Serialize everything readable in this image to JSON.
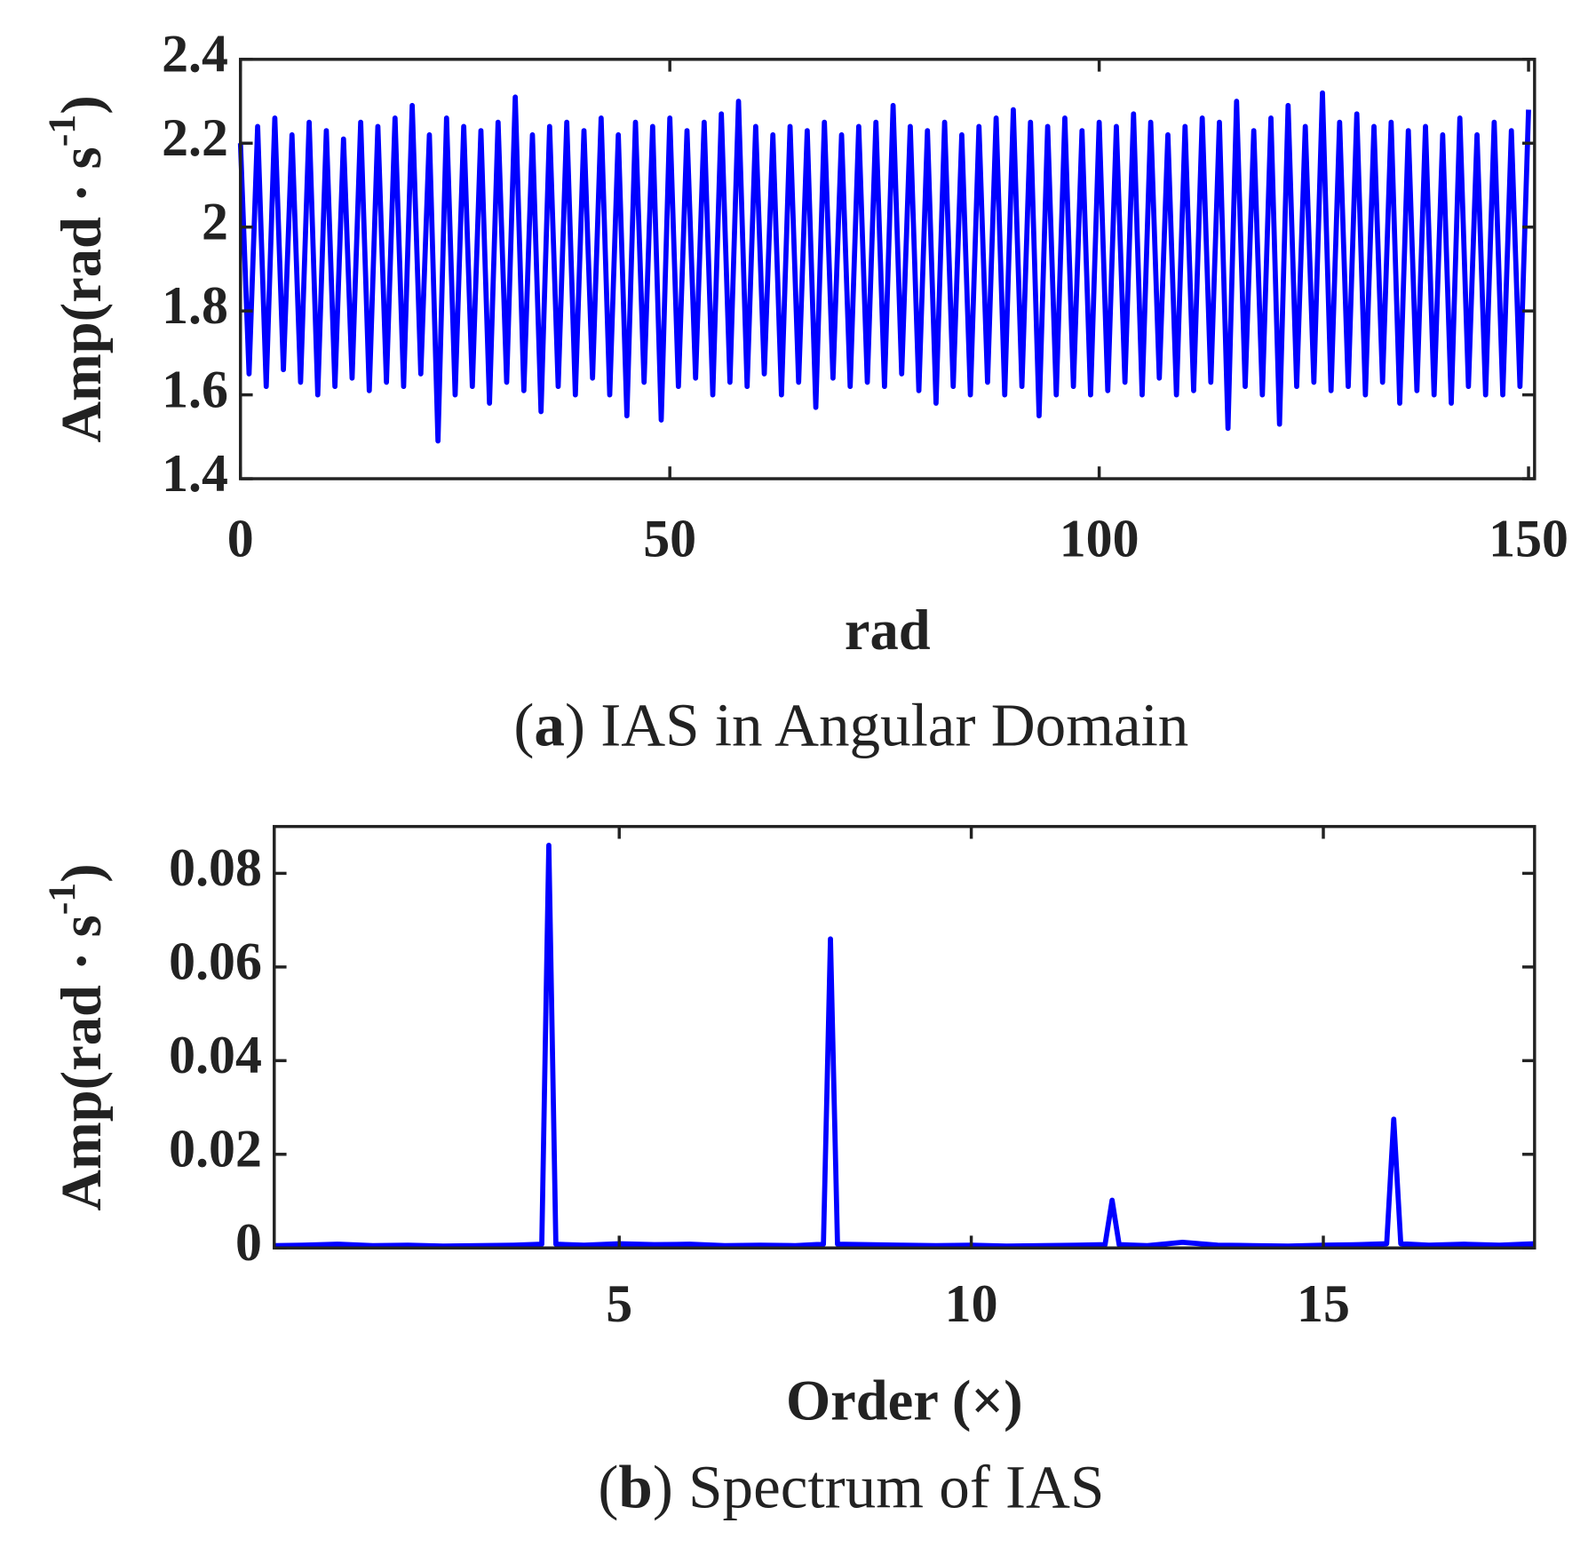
{
  "chart_data": [
    {
      "type": "line",
      "color": "#0000ff",
      "ylabel": [
        "Amp(rad · s",
        "-1",
        ")"
      ],
      "xlabel": "rad",
      "caption": [
        "(",
        "a",
        ") IAS in Angular Domain"
      ],
      "xlim": [
        0,
        150.7
      ],
      "xticks": [
        0,
        50,
        100,
        150
      ],
      "ylim": [
        1.4,
        2.4
      ],
      "yticks": [
        1.4,
        1.6,
        1.8,
        2,
        2.2,
        2.4
      ],
      "x": [
        0,
        1,
        2,
        3,
        4,
        5,
        6,
        7,
        8,
        9,
        10,
        11,
        12,
        13,
        14,
        15,
        16,
        17,
        18,
        19,
        20,
        21,
        22,
        23,
        24,
        25,
        26,
        27,
        28,
        29,
        30,
        31,
        32,
        33,
        34,
        35,
        36,
        37,
        38,
        39,
        40,
        41,
        42,
        43,
        44,
        45,
        46,
        47,
        48,
        49,
        50,
        51,
        52,
        53,
        54,
        55,
        56,
        57,
        58,
        59,
        60,
        61,
        62,
        63,
        64,
        65,
        66,
        67,
        68,
        69,
        70,
        71,
        72,
        73,
        74,
        75,
        76,
        77,
        78,
        79,
        80,
        81,
        82,
        83,
        84,
        85,
        86,
        87,
        88,
        89,
        90,
        91,
        92,
        93,
        94,
        95,
        96,
        97,
        98,
        99,
        100,
        101,
        102,
        103,
        104,
        105,
        106,
        107,
        108,
        109,
        110,
        111,
        112,
        113,
        114,
        115,
        116,
        117,
        118,
        119,
        120,
        121,
        122,
        123,
        124,
        125,
        126,
        127,
        128,
        129,
        130,
        131,
        132,
        133,
        134,
        135,
        136,
        137,
        138,
        139,
        140,
        141,
        142,
        143,
        144,
        145,
        146,
        147,
        148,
        149,
        150
      ],
      "values": [
        2.2,
        1.65,
        2.24,
        1.62,
        2.26,
        1.66,
        2.22,
        1.63,
        2.25,
        1.6,
        2.23,
        1.62,
        2.21,
        1.64,
        2.25,
        1.61,
        2.24,
        1.63,
        2.26,
        1.62,
        2.29,
        1.65,
        2.22,
        1.49,
        2.26,
        1.6,
        2.24,
        1.62,
        2.23,
        1.58,
        2.25,
        1.63,
        2.31,
        1.61,
        2.22,
        1.56,
        2.24,
        1.62,
        2.25,
        1.6,
        2.23,
        1.64,
        2.26,
        1.6,
        2.22,
        1.55,
        2.25,
        1.63,
        2.24,
        1.54,
        2.26,
        1.62,
        2.23,
        1.64,
        2.25,
        1.6,
        2.27,
        1.63,
        2.3,
        1.62,
        2.24,
        1.65,
        2.22,
        1.6,
        2.24,
        1.63,
        2.23,
        1.57,
        2.25,
        1.64,
        2.22,
        1.62,
        2.24,
        1.63,
        2.25,
        1.62,
        2.29,
        1.65,
        2.24,
        1.61,
        2.23,
        1.58,
        2.25,
        1.62,
        2.22,
        1.6,
        2.24,
        1.63,
        2.26,
        1.6,
        2.28,
        1.62,
        2.25,
        1.55,
        2.24,
        1.6,
        2.26,
        1.62,
        2.23,
        1.6,
        2.25,
        1.61,
        2.24,
        1.63,
        2.27,
        1.6,
        2.25,
        1.64,
        2.22,
        1.6,
        2.24,
        1.61,
        2.26,
        1.63,
        2.25,
        1.52,
        2.3,
        1.62,
        2.23,
        1.6,
        2.26,
        1.53,
        2.29,
        1.62,
        2.24,
        1.63,
        2.32,
        1.61,
        2.25,
        1.62,
        2.27,
        1.6,
        2.24,
        1.63,
        2.25,
        1.58,
        2.23,
        1.61,
        2.24,
        1.6,
        2.22,
        1.58,
        2.26,
        1.62,
        2.22,
        1.6,
        2.25,
        1.6,
        2.23,
        1.62,
        2.28
      ]
    },
    {
      "type": "line",
      "color": "#0000ff",
      "ylabel": [
        "Amp(rad · s",
        "-1",
        ")"
      ],
      "xlabel": "Order (×)",
      "caption": [
        "(",
        "b",
        ") Spectrum of IAS"
      ],
      "xlim": [
        0.1,
        18
      ],
      "xticks": [
        5,
        10,
        15
      ],
      "ylim": [
        0,
        0.09
      ],
      "yticks": [
        0,
        0.02,
        0.04,
        0.06,
        0.08
      ],
      "x": [
        0.1,
        0.5,
        1,
        1.5,
        2,
        2.5,
        3,
        3.5,
        3.9,
        4,
        4.1,
        4.5,
        5,
        5.5,
        6,
        6.5,
        7,
        7.5,
        7.9,
        8,
        8.1,
        8.5,
        9,
        9.5,
        10,
        10.5,
        11,
        11.5,
        11.9,
        12,
        12.1,
        12.5,
        13,
        13.5,
        14,
        14.5,
        15,
        15.5,
        15.9,
        16,
        16.1,
        16.5,
        17,
        17.5,
        18
      ],
      "values": [
        0.0005,
        0.0006,
        0.0008,
        0.0005,
        0.0006,
        0.0004,
        0.0005,
        0.0006,
        0.0008,
        0.086,
        0.0008,
        0.0006,
        0.0009,
        0.0007,
        0.0008,
        0.0005,
        0.0006,
        0.0005,
        0.0008,
        0.066,
        0.0008,
        0.0007,
        0.0006,
        0.0005,
        0.0006,
        0.0004,
        0.0005,
        0.0006,
        0.0007,
        0.0102,
        0.0007,
        0.0005,
        0.0012,
        0.0006,
        0.0005,
        0.0004,
        0.0006,
        0.0007,
        0.0009,
        0.0275,
        0.0009,
        0.0006,
        0.0008,
        0.0006,
        0.0009
      ]
    }
  ]
}
